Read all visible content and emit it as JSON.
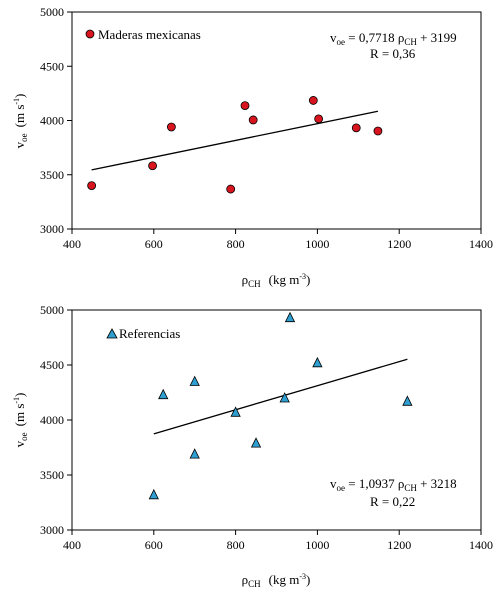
{
  "chart_data": [
    {
      "type": "scatter",
      "xlabel_main": "ρ",
      "xlabel_sub": "CH",
      "xlabel_unit": "(kg m",
      "xlabel_unit_exp": "-3",
      "xlabel_unit_close": ")",
      "ylabel_main": "v",
      "ylabel_sub": "oe",
      "ylabel_unit": "(m s",
      "ylabel_unit_exp": "-1",
      "ylabel_unit_close": ")",
      "xlim": [
        400,
        1400
      ],
      "ylim": [
        3000,
        5000
      ],
      "xticks": [
        400,
        600,
        800,
        1000,
        1200,
        1400
      ],
      "yticks": [
        3000,
        3500,
        4000,
        4500,
        5000
      ],
      "series": [
        {
          "name": "Maderas mexicanas",
          "marker": "circle",
          "color": "#d8141e",
          "points": [
            [
              448,
              3400
            ],
            [
              597,
              3583
            ],
            [
              643,
              3940
            ],
            [
              788,
              3368
            ],
            [
              823,
              4137
            ],
            [
              843,
              4005
            ],
            [
              990,
              4185
            ],
            [
              1003,
              4015
            ],
            [
              1095,
              3932
            ],
            [
              1148,
              3903
            ]
          ]
        }
      ],
      "trendline": {
        "x": [
          448,
          1148
        ],
        "slope": 0.7718,
        "intercept": 3199
      },
      "equation": {
        "lhs": "v",
        "lhs_sub": "oe",
        "mid": " = 0,7718 ρ",
        "mid_sub": "CH",
        "rhs": " + 3199",
        "r": "R  = 0,36"
      }
    },
    {
      "type": "scatter",
      "xlabel_main": "ρ",
      "xlabel_sub": "CH",
      "xlabel_unit": "(kg m",
      "xlabel_unit_exp": "-3",
      "xlabel_unit_close": ")",
      "ylabel_main": "v",
      "ylabel_sub": "oe",
      "ylabel_unit": "(m s",
      "ylabel_unit_exp": "-1",
      "ylabel_unit_close": ")",
      "xlim": [
        400,
        1400
      ],
      "ylim": [
        3000,
        5000
      ],
      "xticks": [
        400,
        600,
        800,
        1000,
        1200,
        1400
      ],
      "yticks": [
        3000,
        3500,
        4000,
        4500,
        5000
      ],
      "series": [
        {
          "name": "Referencias",
          "marker": "triangle",
          "color": "#2e9fd0",
          "points": [
            [
              600,
              3320
            ],
            [
              623,
              4230
            ],
            [
              700,
              3690
            ],
            [
              700,
              4350
            ],
            [
              800,
              4070
            ],
            [
              850,
              3790
            ],
            [
              920,
              4200
            ],
            [
              933,
              4930
            ],
            [
              1000,
              4520
            ],
            [
              1220,
              4170
            ]
          ]
        }
      ],
      "trendline": {
        "x": [
          600,
          1220
        ],
        "slope": 1.0937,
        "intercept": 3218
      },
      "equation": {
        "lhs": "v",
        "lhs_sub": "oe",
        "mid": " = 1,0937 ρ",
        "mid_sub": "CH",
        "rhs": " + 3218",
        "r": "R  = 0,22"
      }
    }
  ]
}
